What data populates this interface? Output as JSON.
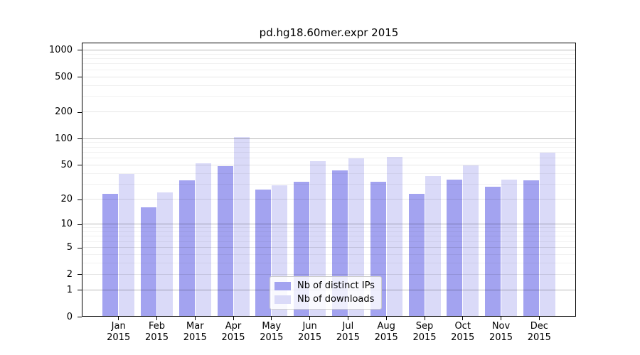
{
  "figure": {
    "background": "#ffffff"
  },
  "chart_data": {
    "type": "bar",
    "title": "pd.hg18.60mer.expr 2015",
    "categories": [
      "Jan",
      "Feb",
      "Mar",
      "Apr",
      "May",
      "Jun",
      "Jul",
      "Aug",
      "Sep",
      "Oct",
      "Nov",
      "Dec"
    ],
    "x_tick_second_line": "2015",
    "series": [
      {
        "name": "Nb of distinct IPs",
        "color": "#a3a3f0",
        "values": [
          23,
          16,
          33,
          48,
          26,
          32,
          43,
          32,
          23,
          34,
          28,
          33
        ]
      },
      {
        "name": "Nb of downloads",
        "color": "#dadaf8",
        "values": [
          39,
          24,
          52,
          104,
          29,
          55,
          60,
          62,
          37,
          49,
          34,
          69
        ]
      }
    ],
    "y_ticks": [
      0,
      1,
      2,
      5,
      10,
      20,
      50,
      100,
      200,
      500,
      1000
    ],
    "y_scale": "log10(value+1)",
    "ylim": [
      0,
      1200
    ],
    "grid": true,
    "legend_position": "inside-bottom-center"
  }
}
